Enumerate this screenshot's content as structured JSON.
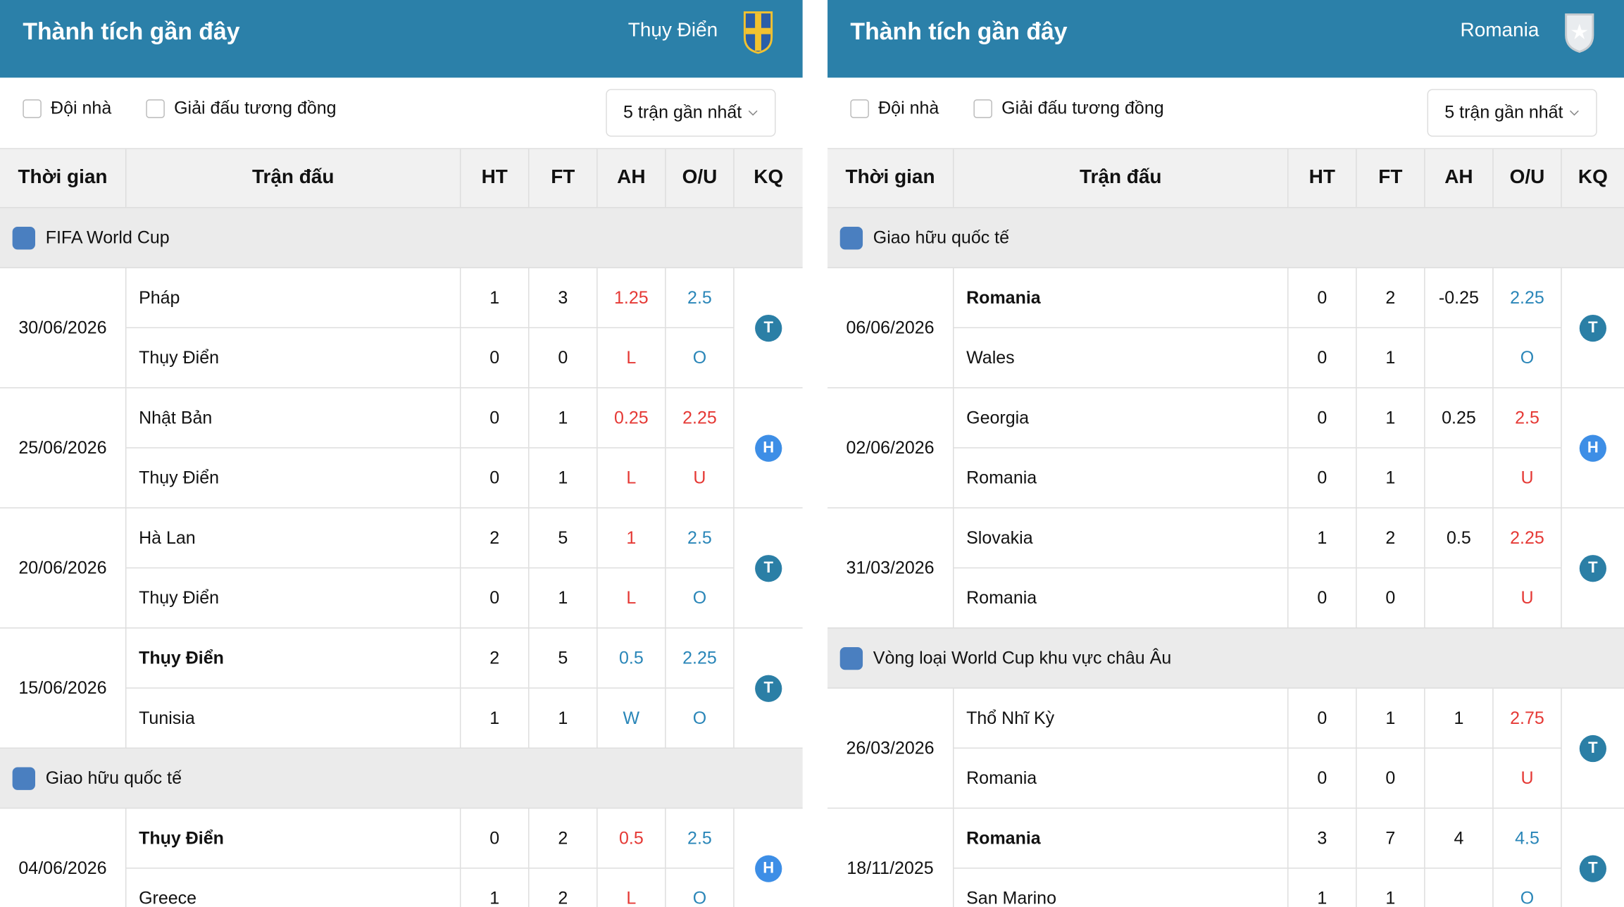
{
  "panels": [
    {
      "title": "Thành tích gần đây",
      "team": "Thụy Điển",
      "filters": [
        "Đội nhà",
        "Giải đấu tương đồng"
      ],
      "dropdown": "5 trận gần nhất",
      "columns": [
        "Thời gian",
        "Trận đấu",
        "HT",
        "FT",
        "AH",
        "O/U",
        "KQ"
      ],
      "groups": [
        {
          "league": "FIFA World Cup",
          "matches": [
            {
              "date": "30/06/2026",
              "result": "T",
              "result_color": "#2b7fa6",
              "rows": [
                {
                  "team": "Pháp",
                  "ht": 1,
                  "ft": 3,
                  "ah": 1.25,
                  "ah_color": "#e53935",
                  "ou": 2.5,
                  "ou_color": "#2a86b8"
                },
                {
                  "team": "Thụy Điển",
                  "ht": 0,
                  "ft": 0,
                  "ah": "L",
                  "ah_color": "#e53935",
                  "ou": "O",
                  "ou_color": "#2a86b8"
                }
              ]
            },
            {
              "date": "25/06/2026",
              "result": "H",
              "result_color": "#3d8ee6",
              "rows": [
                {
                  "team": "Nhật Bản",
                  "ht": 0,
                  "ft": 1,
                  "ah": 0.25,
                  "ah_color": "#e53935",
                  "ou": 2.25,
                  "ou_color": "#e53935"
                },
                {
                  "team": "Thụy Điển",
                  "ht": 0,
                  "ft": 1,
                  "ah": "L",
                  "ah_color": "#e53935",
                  "ou": "U",
                  "ou_color": "#e53935"
                }
              ]
            },
            {
              "date": "20/06/2026",
              "result": "T",
              "result_color": "#2b7fa6",
              "rows": [
                {
                  "team": "Hà Lan",
                  "ht": 2,
                  "ft": 5,
                  "ah": 1,
                  "ah_color": "#e53935",
                  "ou": 2.5,
                  "ou_color": "#2a86b8"
                },
                {
                  "team": "Thụy Điển",
                  "ht": 0,
                  "ft": 1,
                  "ah": "L",
                  "ah_color": "#e53935",
                  "ou": "O",
                  "ou_color": "#2a86b8"
                }
              ]
            },
            {
              "date": "15/06/2026",
              "result": "T",
              "result_color": "#2b7fa6",
              "rows": [
                {
                  "team": "Thụy Điển",
                  "bold": true,
                  "ht": 2,
                  "ft": 5,
                  "ah": 0.5,
                  "ah_color": "#2a86b8",
                  "ou": 2.25,
                  "ou_color": "#2a86b8"
                },
                {
                  "team": "Tunisia",
                  "ht": 1,
                  "ft": 1,
                  "ah": "W",
                  "ah_color": "#2a86b8",
                  "ou": "O",
                  "ou_color": "#2a86b8"
                }
              ]
            }
          ]
        },
        {
          "league": "Giao hữu quốc tế",
          "matches": [
            {
              "date": "04/06/2026",
              "result": "H",
              "result_color": "#3d8ee6",
              "rows": [
                {
                  "team": "Thụy Điển",
                  "bold": true,
                  "ht": 0,
                  "ft": 2,
                  "ah": 0.5,
                  "ah_color": "#e53935",
                  "ou": 2.5,
                  "ou_color": "#2a86b8"
                },
                {
                  "team": "Greece",
                  "ht": 1,
                  "ft": 2,
                  "ah": "L",
                  "ah_color": "#e53935",
                  "ou": "O",
                  "ou_color": "#2a86b8"
                }
              ]
            }
          ]
        }
      ]
    },
    {
      "title": "Thành tích gần đây",
      "team": "Romania",
      "filters": [
        "Đội nhà",
        "Giải đấu tương đồng"
      ],
      "dropdown": "5 trận gần nhất",
      "columns": [
        "Thời gian",
        "Trận đấu",
        "HT",
        "FT",
        "AH",
        "O/U",
        "KQ"
      ],
      "groups": [
        {
          "league": "Giao hữu quốc tế",
          "matches": [
            {
              "date": "06/06/2026",
              "result": "T",
              "result_color": "#2b7fa6",
              "rows": [
                {
                  "team": "Romania",
                  "bold": true,
                  "ht": 0,
                  "ft": 2,
                  "ah": -0.25,
                  "ou": 2.25,
                  "ou_color": "#2a86b8"
                },
                {
                  "team": "Wales",
                  "ht": 0,
                  "ft": 1,
                  "ah": null,
                  "ou": "O",
                  "ou_color": "#2a86b8"
                }
              ]
            },
            {
              "date": "02/06/2026",
              "result": "H",
              "result_color": "#3d8ee6",
              "rows": [
                {
                  "team": "Georgia",
                  "ht": 0,
                  "ft": 1,
                  "ah": 0.25,
                  "ou": 2.5,
                  "ou_color": "#e53935"
                },
                {
                  "team": "Romania",
                  "ht": 0,
                  "ft": 1,
                  "ah": null,
                  "ou": "U",
                  "ou_color": "#e53935"
                }
              ]
            },
            {
              "date": "31/03/2026",
              "result": "T",
              "result_color": "#2b7fa6",
              "rows": [
                {
                  "team": "Slovakia",
                  "ht": 1,
                  "ft": 2,
                  "ah": 0.5,
                  "ou": 2.25,
                  "ou_color": "#e53935"
                },
                {
                  "team": "Romania",
                  "ht": 0,
                  "ft": 0,
                  "ah": null,
                  "ou": "U",
                  "ou_color": "#e53935"
                }
              ]
            }
          ]
        },
        {
          "league": "Vòng loại World Cup khu vực châu Âu",
          "matches": [
            {
              "date": "26/03/2026",
              "result": "T",
              "result_color": "#2b7fa6",
              "rows": [
                {
                  "team": "Thổ Nhĩ Kỳ",
                  "ht": 0,
                  "ft": 1,
                  "ah": 1,
                  "ou": 2.75,
                  "ou_color": "#e53935"
                },
                {
                  "team": "Romania",
                  "ht": 0,
                  "ft": 0,
                  "ah": null,
                  "ou": "U",
                  "ou_color": "#e53935"
                }
              ]
            },
            {
              "date": "18/11/2025",
              "result": "T",
              "result_color": "#2b7fa6",
              "rows": [
                {
                  "team": "Romania",
                  "bold": true,
                  "ht": 3,
                  "ft": 7,
                  "ah": 4,
                  "ou": 4.5,
                  "ou_color": "#2a86b8"
                },
                {
                  "team": "San Marino",
                  "ht": 1,
                  "ft": 1,
                  "ah": null,
                  "ou": "O",
                  "ou_color": "#2a86b8"
                }
              ]
            }
          ]
        }
      ]
    }
  ]
}
